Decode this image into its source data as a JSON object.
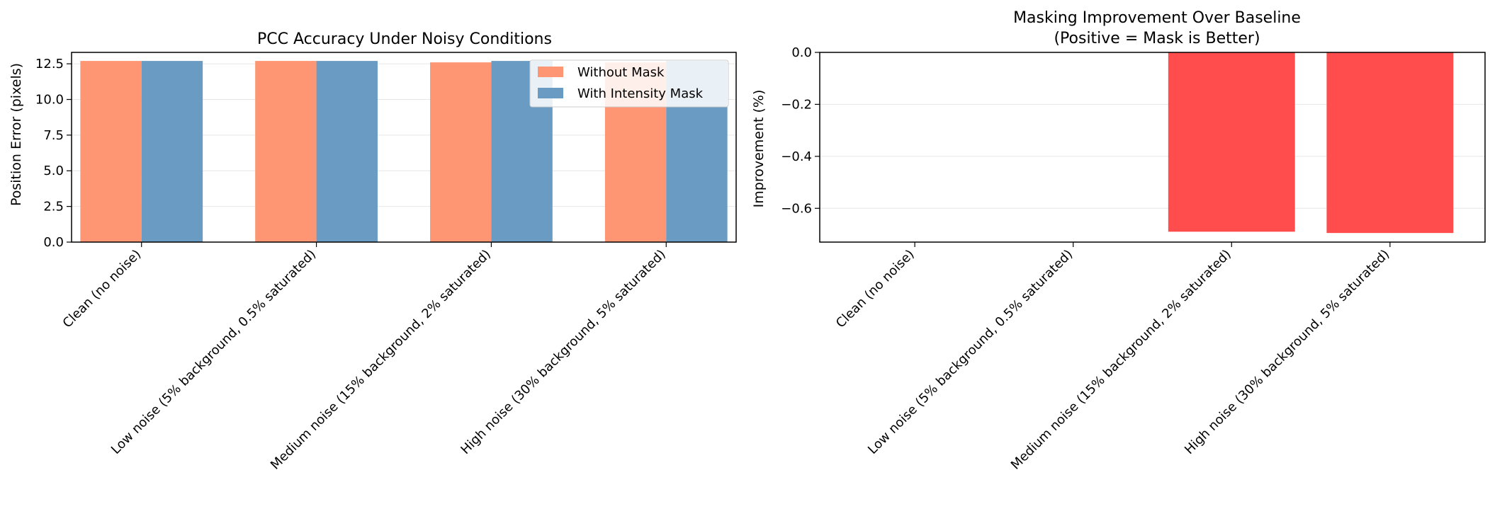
{
  "chart_data": [
    {
      "type": "bar",
      "title": "PCC Accuracy Under Noisy Conditions",
      "xlabel": "",
      "ylabel": "Position Error (pixels)",
      "categories": [
        "Clean (no noise)",
        "Low noise (5% background, 0.5% saturated)",
        "Medium noise (15% background, 2% saturated)",
        "High noise (30% background, 5% saturated)"
      ],
      "series": [
        {
          "name": "Without Mask",
          "color": "#ff9673",
          "values": [
            12.7,
            12.7,
            12.6,
            12.6
          ]
        },
        {
          "name": "With Intensity Mask",
          "color": "#6a9bc3",
          "values": [
            12.7,
            12.7,
            12.7,
            12.7
          ]
        }
      ],
      "ylim": [
        0,
        13.3
      ],
      "yticks": [
        "0.0",
        "2.5",
        "5.0",
        "7.5",
        "10.0",
        "12.5"
      ],
      "ytick_values": [
        0,
        2.5,
        5,
        7.5,
        10,
        12.5
      ],
      "grid": "y",
      "legend": "top-right"
    },
    {
      "type": "bar",
      "title_lines": [
        "Masking Improvement Over Baseline",
        "(Positive = Mask is Better)"
      ],
      "xlabel": "",
      "ylabel": "Improvement (%)",
      "categories": [
        "Clean (no noise)",
        "Low noise (5% background, 0.5% saturated)",
        "Medium noise (15% background, 2% saturated)",
        "High noise (30% background, 5% saturated)"
      ],
      "values": [
        0,
        0,
        -0.69,
        -0.695
      ],
      "bar_color": "#ff4c4c",
      "ylim": [
        -0.73,
        0
      ],
      "yticks": [
        "0.0",
        "−0.2",
        "−0.4",
        "−0.6"
      ],
      "ytick_values": [
        0,
        -0.2,
        -0.4,
        -0.6
      ],
      "grid": "y"
    }
  ]
}
